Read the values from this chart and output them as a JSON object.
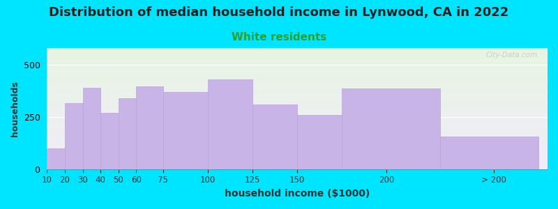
{
  "title": "Distribution of median household income in Lynwood, CA in 2022",
  "subtitle": "White residents",
  "xlabel": "household income ($1000)",
  "ylabel": "households",
  "title_fontsize": 13,
  "subtitle_fontsize": 11,
  "subtitle_color": "#2ca02c",
  "categories": [
    "10",
    "20",
    "30",
    "40",
    "50",
    "60",
    "75",
    "100",
    "125",
    "150",
    "200",
    "> 200"
  ],
  "bar_lefts": [
    10,
    20,
    30,
    40,
    50,
    60,
    75,
    100,
    125,
    150,
    175,
    230
  ],
  "bar_widths": [
    10,
    10,
    10,
    10,
    10,
    15,
    25,
    25,
    25,
    25,
    55,
    55
  ],
  "values": [
    100,
    315,
    390,
    270,
    340,
    395,
    370,
    430,
    310,
    260,
    385,
    155
  ],
  "bar_color": "#c9b4e8",
  "bar_edge_color": "#b8a4d8",
  "background_outer": "#00e5ff",
  "background_plot_top_color": "#e8f5e2",
  "background_plot_bottom_color": "#f0ecfa",
  "ylim": [
    0,
    580
  ],
  "yticks": [
    0,
    250,
    500
  ],
  "xlim": [
    10,
    290
  ],
  "xtick_positions": [
    10,
    20,
    30,
    40,
    50,
    60,
    75,
    100,
    125,
    150,
    200,
    260
  ],
  "xtick_labels": [
    "10",
    "20",
    "30",
    "40",
    "50",
    "60",
    "75",
    "100",
    "125",
    "150",
    "200",
    "> 200"
  ],
  "watermark": "City-Data.com",
  "title_color": "#222222"
}
